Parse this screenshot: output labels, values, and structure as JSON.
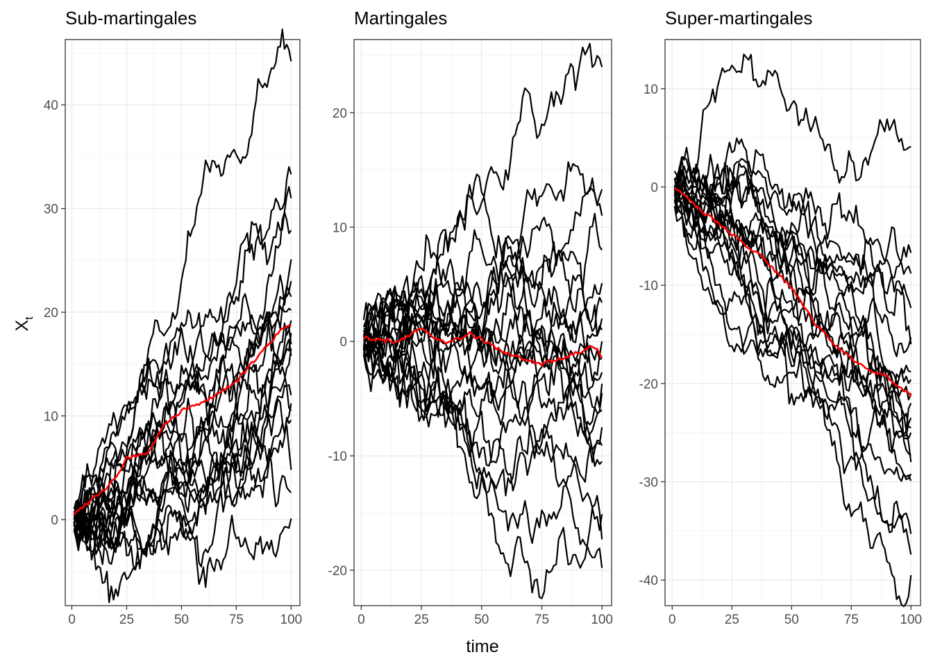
{
  "figure": {
    "background": "#ffffff"
  },
  "axis_titles": {
    "x": "time",
    "y_main": "X",
    "y_sub": "t"
  },
  "style": {
    "path_color": "#000000",
    "mean_color": "#ff0000",
    "grid_major": "#ebebeb",
    "frame": "#333333"
  },
  "chart_data": [
    {
      "type": "line",
      "title": "Sub-martingales",
      "xlim": [
        -3,
        104
      ],
      "ylim": [
        -8.3,
        46.3
      ],
      "xticks": [
        0,
        25,
        50,
        75,
        100
      ],
      "yticks": [
        0,
        10,
        20,
        30,
        40
      ],
      "n_paths": 20,
      "drift": 0.19,
      "sd": 1.0,
      "mean_path": [
        [
          1,
          0.5
        ],
        [
          10,
          2.2
        ],
        [
          15,
          2.9
        ],
        [
          22,
          4.6
        ],
        [
          25,
          5.9
        ],
        [
          35,
          6.5
        ],
        [
          42,
          9.1
        ],
        [
          50,
          10.5
        ],
        [
          60,
          11.3
        ],
        [
          75,
          13.3
        ],
        [
          85,
          15.8
        ],
        [
          95,
          18.2
        ],
        [
          100,
          18.7
        ]
      ],
      "endpoints": [
        44.2,
        33.3,
        31.0,
        27.9,
        25.1,
        23.0,
        21.5,
        20.2,
        18.0,
        16.5,
        15.8,
        12.0,
        11.2,
        10.5,
        9.6,
        4.8,
        2.6,
        0.1,
        16.9,
        19.2
      ],
      "extremes": {
        "max": 44.2,
        "min": -6.2
      }
    },
    {
      "type": "line",
      "title": "Martingales",
      "xlim": [
        -3,
        104
      ],
      "ylim": [
        -23.1,
        26.4
      ],
      "xticks": [
        0,
        25,
        50,
        75,
        100
      ],
      "yticks": [
        -20,
        -10,
        0,
        10,
        20
      ],
      "n_paths": 20,
      "drift": 0.0,
      "sd": 1.0,
      "mean_path": [
        [
          1,
          0.3
        ],
        [
          15,
          0.0
        ],
        [
          25,
          1.1
        ],
        [
          35,
          -0.2
        ],
        [
          45,
          0.7
        ],
        [
          60,
          -1.0
        ],
        [
          75,
          -2.0
        ],
        [
          90,
          -1.0
        ],
        [
          96,
          -0.3
        ],
        [
          100,
          -1.3
        ]
      ],
      "endpoints": [
        24.0,
        13.3,
        11.0,
        8.0,
        5.1,
        3.4,
        2.0,
        1.0,
        -1.5,
        -2.7,
        -3.7,
        -4.5,
        -7.5,
        -9.1,
        -10.5,
        -15.1,
        -17.3,
        -19.8,
        0.0,
        -6.0
      ],
      "extremes": {
        "max": 24.3,
        "min": -20.9
      }
    },
    {
      "type": "line",
      "title": "Super-martingales",
      "xlim": [
        -3,
        104
      ],
      "ylim": [
        -42.6,
        15.0
      ],
      "xticks": [
        0,
        25,
        50,
        75,
        100
      ],
      "yticks": [
        -40,
        -30,
        -20,
        -10,
        0,
        10
      ],
      "n_paths": 20,
      "drift": -0.21,
      "sd": 1.0,
      "mean_path": [
        [
          1,
          0.0
        ],
        [
          10,
          -2.0
        ],
        [
          20,
          -3.8
        ],
        [
          30,
          -5.8
        ],
        [
          38,
          -7.2
        ],
        [
          50,
          -10.3
        ],
        [
          60,
          -13.9
        ],
        [
          70,
          -16.5
        ],
        [
          80,
          -18.3
        ],
        [
          90,
          -19.3
        ],
        [
          100,
          -21.2
        ]
      ],
      "endpoints": [
        4.1,
        -6.7,
        -8.8,
        -12.3,
        -15.3,
        -18.8,
        -19.6,
        -22.0,
        -23.5,
        -25.0,
        -27.3,
        -28.0,
        -29.2,
        -29.9,
        -35.3,
        -37.4,
        -39.5,
        -16.0,
        -21.0,
        -24.5
      ],
      "extremes": {
        "max": 12.4,
        "min": -40.3
      }
    }
  ]
}
